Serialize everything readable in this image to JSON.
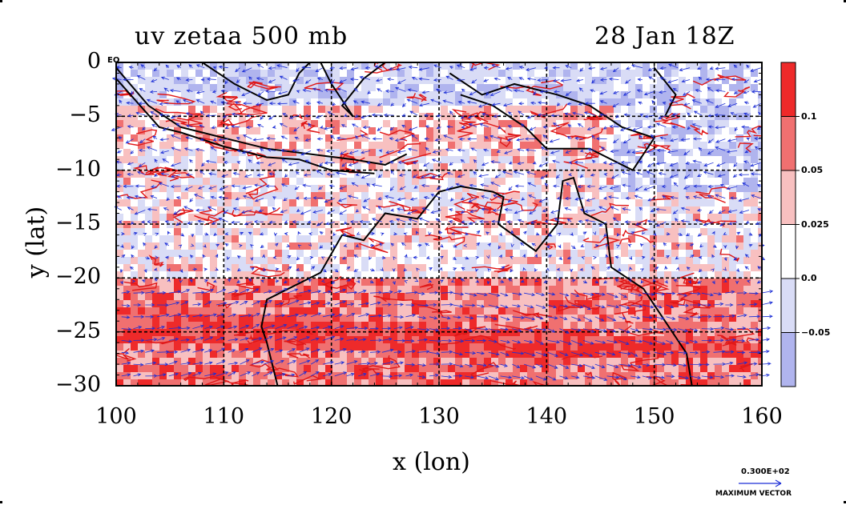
{
  "title": {
    "left": "uv zetaa 500 mb",
    "right": "28 Jan 18Z"
  },
  "axes": {
    "xlabel": "x (lon)",
    "ylabel": "y (lat)",
    "x_ticks": [
      "100",
      "110",
      "120",
      "130",
      "140",
      "150",
      "160"
    ],
    "y_ticks": [
      "0",
      "−5",
      "−10",
      "−15",
      "−20",
      "−25",
      "−30"
    ],
    "equator_label": "EQ",
    "xlim": [
      100,
      160
    ],
    "ylim": [
      -30,
      0
    ]
  },
  "colorbar": {
    "labels": [
      "0.1",
      "0.05",
      "0.025",
      "0.0",
      "−0.05"
    ],
    "levels": [
      -0.05,
      0.0,
      0.025,
      0.05,
      0.1
    ],
    "colors": [
      "#b0b4ee",
      "#d9dcf6",
      "#ffffff",
      "#f8c0c0",
      "#f07070",
      "#ee2a2a"
    ]
  },
  "reference_vector": {
    "value": "0.300E+02",
    "label": "MAXIMUM VECTOR"
  },
  "colors": {
    "vector": "#1c2ed6",
    "contour": "#e01818",
    "coast": "#000000",
    "grid": "#000000"
  }
}
